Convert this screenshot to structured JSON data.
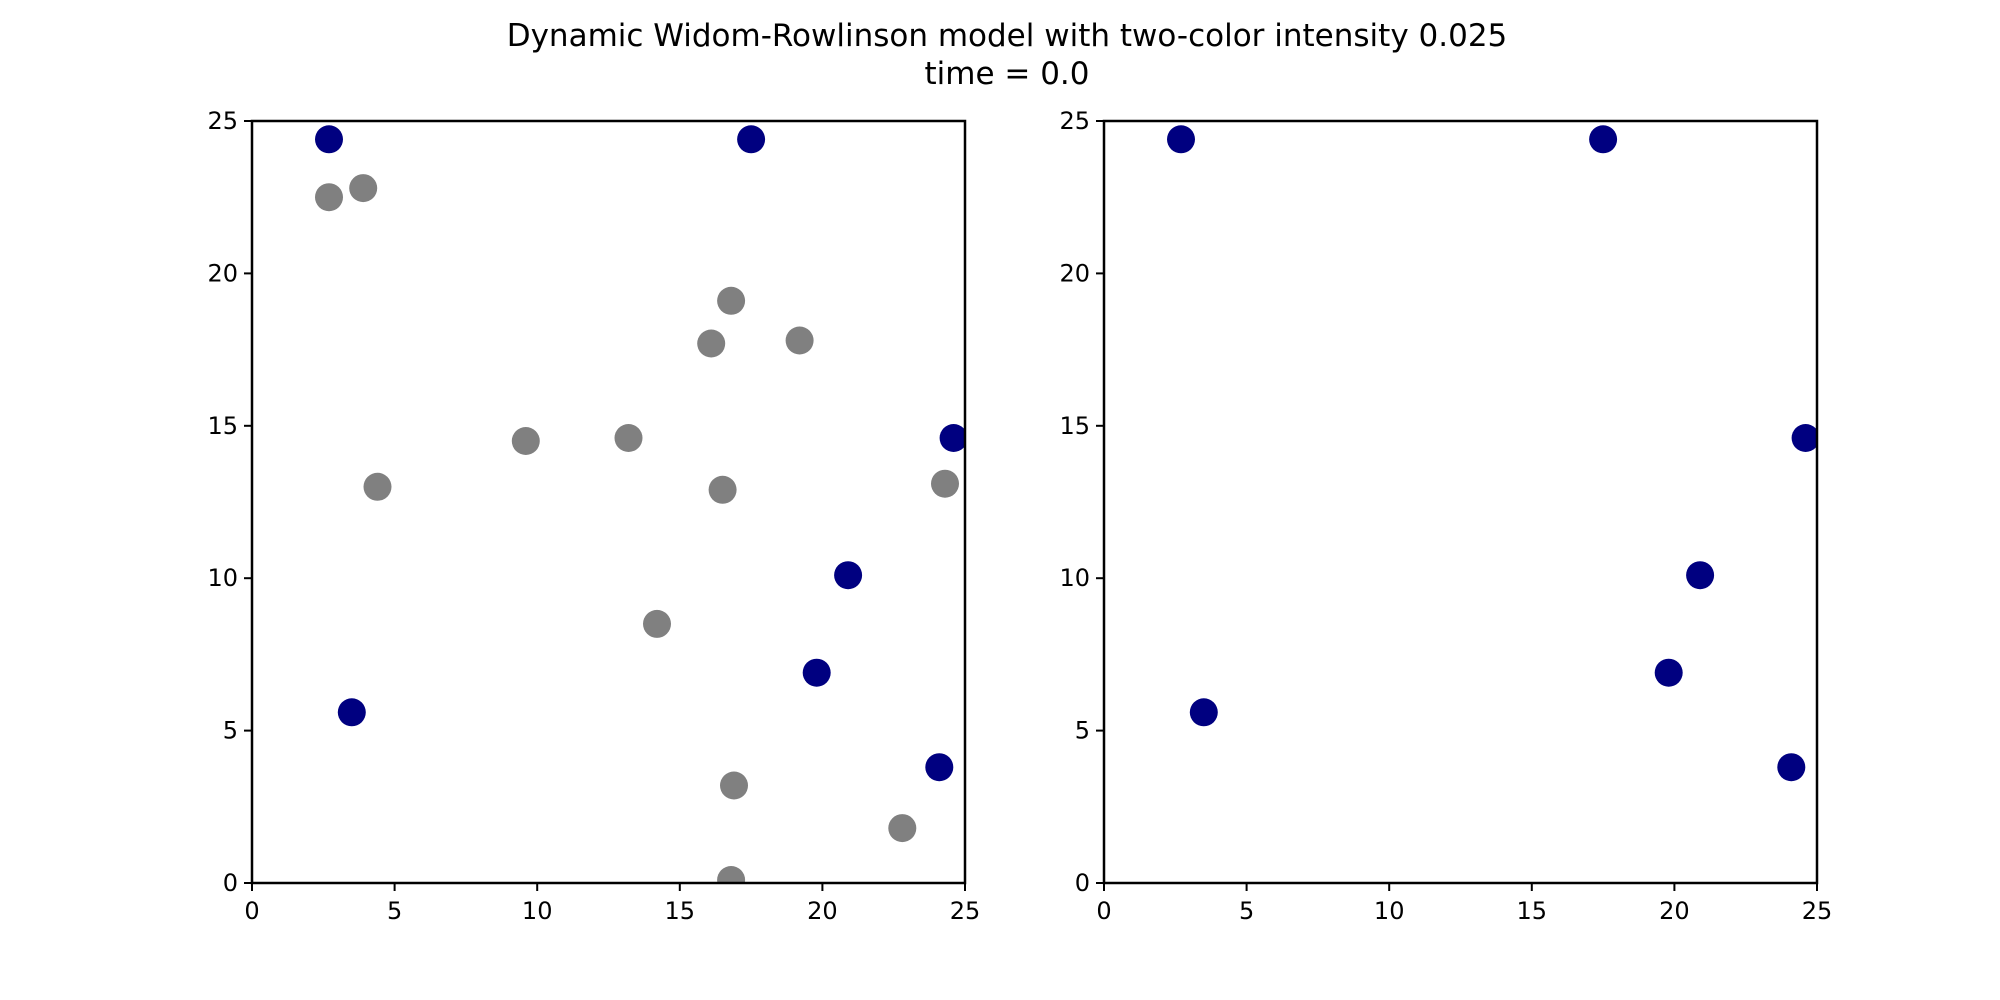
{
  "chart_data": [
    {
      "type": "scatter",
      "title": "Dynamic Widom-Rowlinson model with two-color intensity 0.025",
      "subtitle": "time = 0.0",
      "xlabel": "",
      "ylabel": "",
      "xlim": [
        0,
        25
      ],
      "ylim": [
        0,
        25
      ],
      "xticks": [
        "0",
        "5",
        "10",
        "15",
        "20",
        "25"
      ],
      "yticks": [
        "0",
        "5",
        "10",
        "15",
        "20",
        "25"
      ],
      "grid": false,
      "series": [
        {
          "color": "#000080",
          "points": [
            [
              2.7,
              24.4
            ],
            [
              17.5,
              24.4
            ],
            [
              24.6,
              14.6
            ],
            [
              20.9,
              10.1
            ],
            [
              19.8,
              6.9
            ],
            [
              3.5,
              5.6
            ],
            [
              24.1,
              3.8
            ]
          ]
        },
        {
          "color": "#808080",
          "points": [
            [
              2.7,
              22.5
            ],
            [
              3.9,
              22.8
            ],
            [
              16.8,
              19.1
            ],
            [
              16.1,
              17.7
            ],
            [
              19.2,
              17.8
            ],
            [
              9.6,
              14.5
            ],
            [
              13.2,
              14.6
            ],
            [
              4.4,
              13.0
            ],
            [
              16.5,
              12.9
            ],
            [
              24.3,
              13.1
            ],
            [
              14.2,
              8.5
            ],
            [
              16.9,
              3.2
            ],
            [
              22.8,
              1.8
            ],
            [
              16.8,
              0.1
            ]
          ]
        }
      ]
    },
    {
      "type": "scatter",
      "xlabel": "",
      "ylabel": "",
      "xlim": [
        0,
        25
      ],
      "ylim": [
        0,
        25
      ],
      "xticks": [
        "0",
        "5",
        "10",
        "15",
        "20",
        "25"
      ],
      "yticks": [
        "0",
        "5",
        "10",
        "15",
        "20",
        "25"
      ],
      "grid": false,
      "series": [
        {
          "color": "#000080",
          "points": [
            [
              2.7,
              24.4
            ],
            [
              17.5,
              24.4
            ],
            [
              24.6,
              14.6
            ],
            [
              20.9,
              10.1
            ],
            [
              19.8,
              6.9
            ],
            [
              3.5,
              5.6
            ],
            [
              24.1,
              3.8
            ]
          ]
        }
      ]
    }
  ]
}
